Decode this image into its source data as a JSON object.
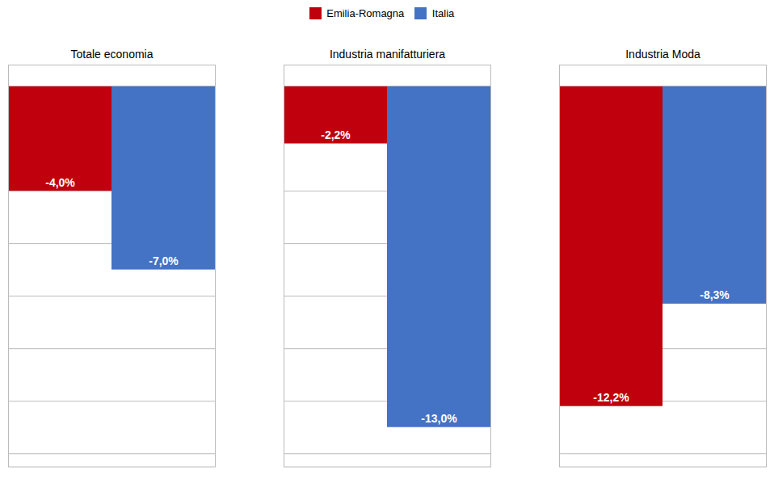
{
  "chart_data": {
    "type": "bar",
    "categories": [
      "Totale economia",
      "Industria manifatturiera",
      "Industria Moda"
    ],
    "series": [
      {
        "name": "Emilia-Romagna",
        "color": "#C0000C",
        "values": [
          -4.0,
          -2.2,
          -12.2
        ],
        "value_labels": [
          "-4,0%",
          "-2,2%",
          "-12,2%"
        ]
      },
      {
        "name": "Italia",
        "color": "#4472C4",
        "values": [
          -7.0,
          -13.0,
          -8.3
        ],
        "value_labels": [
          "-7,0%",
          "-13,0%",
          "-8,3%"
        ]
      }
    ],
    "ylim": [
      -14.5,
      0.8
    ],
    "yticks": [
      0,
      -2,
      -4,
      -6,
      -8,
      -10,
      -12,
      -14
    ],
    "grid": true,
    "tick_labels": "x",
    "data_labels": true,
    "legend": "top"
  }
}
